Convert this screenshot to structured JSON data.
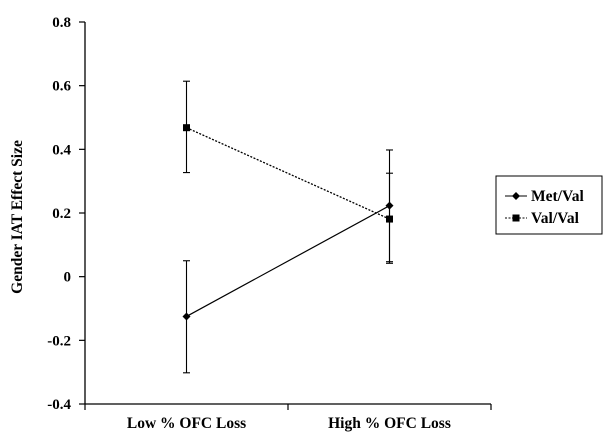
{
  "chart_data": {
    "type": "line",
    "title": "",
    "xlabel": "",
    "ylabel": "Gender IAT Effect Size",
    "categories": [
      "Low % OFC Loss",
      "High % OFC Loss"
    ],
    "ylim": [
      -0.4,
      0.8
    ],
    "yticks": [
      "-0.4",
      "-0.2",
      "0",
      "0.2",
      "0.4",
      "0.6",
      "0.8"
    ],
    "grid": false,
    "legend_position": "right",
    "series": [
      {
        "name": "Met/Val",
        "values": [
          -0.125,
          0.223
        ],
        "error_low": [
          -0.302,
          0.047
        ],
        "error_high": [
          0.05,
          0.398
        ],
        "marker": "diamond",
        "line_style": "solid",
        "color": "#000000"
      },
      {
        "name": "Val/Val",
        "values": [
          0.468,
          0.181
        ],
        "error_low": [
          0.327,
          0.042
        ],
        "error_high": [
          0.614,
          0.325
        ],
        "marker": "square",
        "line_style": "dotted",
        "color": "#000000"
      }
    ]
  }
}
